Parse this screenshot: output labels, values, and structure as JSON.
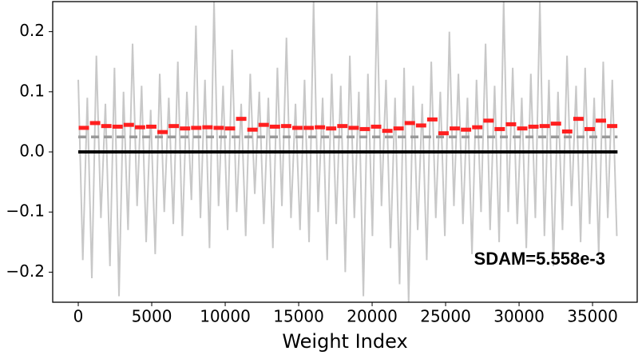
{
  "chart_data": {
    "type": "line",
    "xlabel": "Weight Index",
    "annotation": "SDAM=5.558e-3",
    "xlim": [
      -1740,
      38040
    ],
    "ylim": [
      -0.25,
      0.25
    ],
    "xticks": [
      0,
      5000,
      10000,
      15000,
      20000,
      25000,
      30000,
      35000
    ],
    "yticks": [
      {
        "value": -0.2,
        "label": "−0.2"
      },
      {
        "value": -0.1,
        "label": "−0.1"
      },
      {
        "value": 0,
        "label": "0.0"
      },
      0.1,
      0.2
    ],
    "series": [
      {
        "color": "#c8c8c8",
        "style": "line",
        "x": [
          0,
          308,
          616,
          924,
          1232,
          1540,
          1848,
          2156,
          2464,
          2772,
          3080,
          3388,
          3696,
          4004,
          4312,
          4620,
          4928,
          5236,
          5544,
          5852,
          6160,
          6468,
          6776,
          7084,
          7392,
          7700,
          8008,
          8316,
          8624,
          8932,
          9240,
          9548,
          9856,
          10164,
          10472,
          10780,
          11088,
          11396,
          11704,
          12012,
          12320,
          12628,
          12936,
          13244,
          13552,
          13860,
          14168,
          14476,
          14784,
          15092,
          15400,
          15708,
          16016,
          16324,
          16632,
          16940,
          17248,
          17556,
          17864,
          18172,
          18480,
          18788,
          19096,
          19404,
          19712,
          20020,
          20328,
          20636,
          20944,
          21252,
          21560,
          21868,
          22176,
          22484,
          22792,
          23100,
          23408,
          23716,
          24024,
          24332,
          24640,
          24948,
          25256,
          25564,
          25872,
          26180,
          26488,
          26796,
          27104,
          27412,
          27720,
          28028,
          28336,
          28644,
          28952,
          29260,
          29568,
          29876,
          30184,
          30492,
          30800,
          31108,
          31416,
          31724,
          32032,
          32340,
          32648,
          32956,
          33264,
          33572,
          33880,
          34188,
          34496,
          34804,
          35112,
          35420,
          35728,
          36036,
          36344,
          36652
        ],
        "values": [
          0.12,
          -0.18,
          0.09,
          -0.21,
          0.16,
          -0.11,
          0.08,
          -0.19,
          0.14,
          -0.24,
          0.1,
          -0.13,
          0.18,
          -0.09,
          0.11,
          -0.15,
          0.07,
          -0.17,
          0.13,
          -0.1,
          0.09,
          -0.12,
          0.15,
          -0.14,
          0.1,
          -0.08,
          0.21,
          -0.11,
          0.12,
          -0.16,
          0.25,
          -0.09,
          0.11,
          -0.13,
          0.17,
          -0.1,
          0.08,
          -0.14,
          0.13,
          -0.07,
          0.1,
          -0.12,
          0.09,
          -0.16,
          0.14,
          -0.09,
          0.19,
          -0.11,
          0.08,
          -0.13,
          0.12,
          -0.15,
          0.25,
          -0.1,
          0.09,
          -0.18,
          0.13,
          -0.12,
          0.11,
          -0.2,
          0.16,
          -0.11,
          0.1,
          -0.24,
          0.13,
          -0.14,
          0.25,
          -0.09,
          0.12,
          -0.16,
          0.09,
          -0.22,
          0.14,
          -0.25,
          0.11,
          -0.13,
          0.08,
          -0.18,
          0.15,
          -0.11,
          0.1,
          -0.14,
          0.2,
          -0.09,
          0.13,
          -0.12,
          0.09,
          -0.17,
          0.12,
          -0.1,
          0.18,
          -0.13,
          0.11,
          -0.15,
          0.25,
          -0.1,
          0.14,
          -0.12,
          0.09,
          -0.16,
          0.13,
          -0.11,
          0.25,
          -0.14,
          0.12,
          -0.19,
          0.1,
          -0.13,
          0.16,
          -0.09,
          0.11,
          -0.15,
          0.14,
          -0.12,
          0.09,
          -0.17,
          0.15,
          -0.11,
          0.12,
          -0.14
        ]
      },
      {
        "color": "#ff1f1f",
        "style": "step",
        "x": [
          380,
          1145,
          1910,
          2675,
          3440,
          4205,
          4970,
          5735,
          6500,
          7265,
          8030,
          8795,
          9560,
          10325,
          11090,
          11855,
          12620,
          13385,
          14150,
          14915,
          15680,
          16445,
          17210,
          17975,
          18740,
          19505,
          20270,
          21035,
          21800,
          22565,
          23330,
          24095,
          24860,
          25625,
          26390,
          27155,
          27920,
          28685,
          29450,
          30215,
          30980,
          31745,
          32510,
          33275,
          34040,
          34805,
          35570,
          36335
        ],
        "values": [
          0.04,
          0.048,
          0.043,
          0.042,
          0.045,
          0.041,
          0.042,
          0.033,
          0.043,
          0.039,
          0.04,
          0.041,
          0.04,
          0.039,
          0.055,
          0.037,
          0.045,
          0.042,
          0.043,
          0.04,
          0.04,
          0.041,
          0.039,
          0.043,
          0.04,
          0.038,
          0.042,
          0.035,
          0.039,
          0.048,
          0.044,
          0.054,
          0.031,
          0.039,
          0.037,
          0.041,
          0.052,
          0.038,
          0.046,
          0.039,
          0.042,
          0.043,
          0.047,
          0.034,
          0.055,
          0.038,
          0.052,
          0.043
        ]
      }
    ],
    "reference_lines": [
      {
        "y": 0.025,
        "color": "#999999",
        "dash": true,
        "xspan": [
          0,
          36700
        ]
      },
      {
        "y": 0,
        "color": "#000000",
        "dash": false,
        "xspan": [
          0,
          36700
        ]
      }
    ]
  }
}
